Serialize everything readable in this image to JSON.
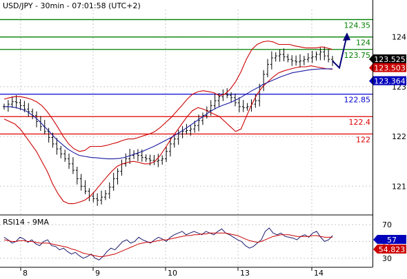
{
  "header": {
    "title": "USD/JPY - 30min - 07:01:58 (UTC+2)"
  },
  "colors": {
    "green": "#008000",
    "blue": "#0000cc",
    "red": "#e00000",
    "bollinger": "#cc0000",
    "ma": "#1a1aa0",
    "candle": "#000000",
    "arrow": "#00007a",
    "price_box_dark": "#000000",
    "price_box_blue": "#0000bb",
    "price_box_red": "#cc0000",
    "grid": "#c8c8c8",
    "rsi_line": "#1a1a6e",
    "rsi_signal": "#cc0000"
  },
  "chart_data": [
    {
      "type": "candlestick",
      "title": "USD/JPY - 30min - 07:01:58 (UTC+2)",
      "x_ticks": [
        "8",
        "9",
        "10",
        "13",
        "14"
      ],
      "y_ticks": [
        121,
        122,
        123,
        124
      ],
      "y_tick_labels": [
        "121",
        "122",
        "123",
        "124"
      ],
      "ylim": [
        120.45,
        124.55
      ],
      "grid": true,
      "horizontal_levels": [
        {
          "value": 124.35,
          "label": "124.35",
          "color": "green"
        },
        {
          "value": 124.0,
          "label": "124",
          "color": "green"
        },
        {
          "value": 123.75,
          "label": "123.75",
          "color": "green"
        },
        {
          "value": 122.85,
          "label": "122.85",
          "color": "blue"
        },
        {
          "value": 122.4,
          "label": "122.4",
          "color": "red"
        },
        {
          "value": 122.05,
          "label": "122",
          "color": "red"
        }
      ],
      "current_price_labels": [
        {
          "value": 123.525,
          "label": "123.525",
          "style": "dark"
        },
        {
          "value": 123.503,
          "label": "123.503",
          "style": "red"
        },
        {
          "value": 123.364,
          "label": "123.364",
          "style": "blue"
        }
      ],
      "close_series": [
        122.6,
        122.65,
        122.7,
        122.68,
        122.62,
        122.55,
        122.5,
        122.42,
        122.3,
        122.2,
        122.1,
        121.98,
        121.85,
        121.75,
        121.65,
        121.55,
        121.45,
        121.32,
        121.15,
        121.0,
        120.9,
        120.8,
        120.75,
        120.72,
        120.78,
        120.85,
        120.98,
        121.15,
        121.3,
        121.45,
        121.55,
        121.62,
        121.65,
        121.62,
        121.58,
        121.55,
        121.52,
        121.5,
        121.52,
        121.55,
        121.7,
        121.85,
        121.95,
        122.05,
        122.1,
        122.12,
        122.15,
        122.22,
        122.32,
        122.42,
        122.52,
        122.62,
        122.72,
        122.8,
        122.85,
        122.83,
        122.78,
        122.68,
        122.6,
        122.58,
        122.6,
        122.65,
        122.72,
        123.0,
        123.25,
        123.45,
        123.58,
        123.62,
        123.65,
        123.6,
        123.55,
        123.52,
        123.5,
        123.52,
        123.55,
        123.58,
        123.6,
        123.65,
        123.7,
        123.62,
        123.55,
        123.52
      ],
      "forecast_path": [
        123.52,
        123.38,
        123.98
      ],
      "series": [
        {
          "name": "BB upper",
          "values": [
            122.75,
            122.78,
            122.8,
            122.8,
            122.78,
            122.75,
            122.7,
            122.62,
            122.5,
            122.35,
            122.18,
            122.0,
            121.85,
            121.75,
            121.7,
            121.72,
            121.8,
            121.8,
            121.8,
            121.82,
            121.85,
            121.88,
            121.92,
            121.95,
            121.95,
            121.98,
            122.02,
            122.05,
            122.1,
            122.18,
            122.28,
            122.38,
            122.5,
            122.62,
            122.75,
            122.85,
            122.9,
            122.92,
            122.9,
            122.88,
            122.82,
            122.85,
            122.95,
            123.1,
            123.3,
            123.55,
            123.75,
            123.85,
            123.9,
            123.92,
            123.9,
            123.85,
            123.85,
            123.85,
            123.82,
            123.8,
            123.78,
            123.78,
            123.78,
            123.8,
            123.78,
            123.75
          ]
        },
        {
          "name": "BB lower",
          "values": [
            122.35,
            122.3,
            122.25,
            122.15,
            122.0,
            121.85,
            121.7,
            121.5,
            121.3,
            121.05,
            120.85,
            120.7,
            120.65,
            120.65,
            120.68,
            120.72,
            120.8,
            120.92,
            121.05,
            121.18,
            121.3,
            121.4,
            121.45,
            121.48,
            121.5,
            121.48,
            121.45,
            121.45,
            121.5,
            121.62,
            121.78,
            121.95,
            122.1,
            122.25,
            122.4,
            122.52,
            122.58,
            122.55,
            122.5,
            122.45,
            122.4,
            122.3,
            122.2,
            122.1,
            122.15,
            122.4,
            122.65,
            122.85,
            123.0,
            123.1,
            123.2,
            123.28,
            123.32,
            123.35,
            123.38,
            123.4,
            123.4,
            123.42,
            123.4,
            123.38,
            123.36,
            123.35
          ]
        },
        {
          "name": "MA",
          "values": [
            122.6,
            122.6,
            122.58,
            122.55,
            122.5,
            122.42,
            122.32,
            122.2,
            122.08,
            121.95,
            121.85,
            121.75,
            121.68,
            121.62,
            121.6,
            121.58,
            121.57,
            121.56,
            121.55,
            121.55,
            121.56,
            121.58,
            121.62,
            121.66,
            121.7,
            121.75,
            121.8,
            121.86,
            121.92,
            121.98,
            122.05,
            122.12,
            122.2,
            122.28,
            122.36,
            122.44,
            122.52,
            122.58,
            122.63,
            122.67,
            122.72,
            122.78,
            122.85,
            122.92,
            122.98,
            123.05,
            123.1,
            123.15,
            123.2,
            123.24,
            123.28,
            123.3,
            123.32,
            123.34,
            123.35,
            123.36,
            123.36,
            123.36
          ]
        }
      ]
    },
    {
      "type": "line",
      "title": "RSI14 - 9MA",
      "y_ticks": [
        30,
        50,
        70
      ],
      "y_tick_labels": [
        "30",
        "50",
        "70"
      ],
      "ylim": [
        20,
        80
      ],
      "grid": true,
      "current_value_labels": [
        {
          "value": 57,
          "label": "57",
          "style": "blue"
        },
        {
          "value": 54.823,
          "label": "54.823",
          "style": "red"
        }
      ],
      "series": [
        {
          "name": "RSI14",
          "values": [
            55,
            52,
            48,
            50,
            55,
            53,
            49,
            52,
            47,
            45,
            50,
            52,
            45,
            44,
            40,
            42,
            38,
            35,
            37,
            33,
            30,
            32,
            35,
            30,
            28,
            32,
            38,
            42,
            40,
            45,
            50,
            52,
            48,
            50,
            55,
            52,
            50,
            48,
            52,
            55,
            53,
            50,
            55,
            58,
            60,
            62,
            58,
            60,
            62,
            60,
            58,
            62,
            60,
            58,
            62,
            65,
            60,
            58,
            55,
            52,
            50,
            45,
            42,
            44,
            48,
            52,
            62,
            66,
            60,
            58,
            60,
            56,
            55,
            54,
            52,
            56,
            58,
            55,
            60,
            62,
            55,
            50,
            52,
            57
          ]
        },
        {
          "name": "9MA",
          "values": [
            52,
            51,
            50,
            50,
            51,
            51,
            50,
            50,
            49,
            48,
            48,
            48,
            47,
            46,
            45,
            44,
            43,
            41,
            40,
            38,
            36,
            35,
            34,
            33,
            32,
            32,
            33,
            34,
            35,
            37,
            39,
            41,
            43,
            45,
            47,
            48,
            49,
            49,
            50,
            51,
            52,
            52,
            53,
            54,
            55,
            56,
            57,
            57,
            58,
            58,
            59,
            59,
            60,
            60,
            60,
            60,
            60,
            59,
            58,
            57,
            55,
            53,
            51,
            50,
            49,
            50,
            52,
            54,
            56,
            57,
            58,
            58,
            58,
            57,
            56,
            56,
            56,
            56,
            57,
            57,
            56,
            55,
            55,
            55
          ]
        }
      ]
    }
  ]
}
